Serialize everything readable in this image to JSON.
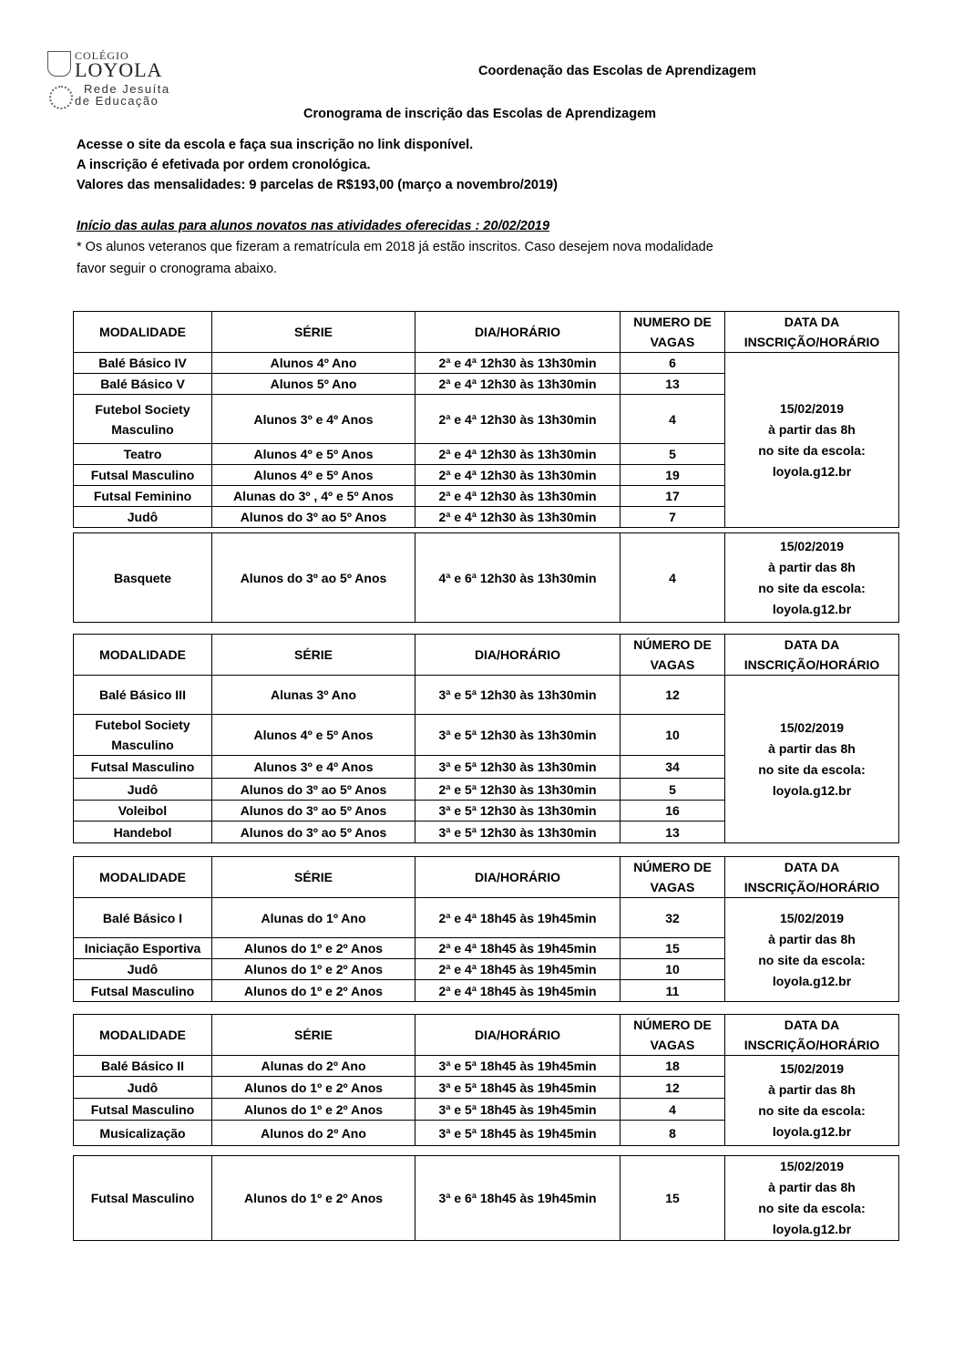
{
  "logo": {
    "line1": "COLÉGIO",
    "line2": "LOYOLA",
    "line3": "Rede Jesuíta",
    "line4": "de Educação"
  },
  "header": {
    "coordination": "Coordenação das Escolas de Aprendizagem",
    "title": "Cronograma de inscrição das Escolas de Aprendizagem",
    "line1": "Acesse o site da escola e faça sua inscrição no link disponível.",
    "line2": "A inscrição é efetivada por ordem cronológica.",
    "line3": "Valores das mensalidades: 9 parcelas de R$193,00 (março a novembro/2019)",
    "start": "Início das aulas para alunos novatos nas atividades oferecidas : 20/02/2019",
    "note1": "* Os alunos veteranos que fizeram a rematrícula em 2018 já estão inscritos. Caso desejem nova modalidade",
    "note2": "favor seguir o cronograma abaixo."
  },
  "registration": [
    "15/02/2019",
    "à partir das  8h",
    "no site da escola:",
    "loyola.g12.br"
  ],
  "tables": [
    {
      "header": [
        "MODALIDADE",
        "SÉRIE",
        "DIA/HORÁRIO",
        "NUMERO DE VAGAS",
        "DATA DA INSCRIÇÃO/HORÁRIO"
      ],
      "rows": [
        [
          "Balé Básico IV",
          "Alunos  4º Ano",
          "2ª e 4ª 12h30 às 13h30min",
          "6"
        ],
        [
          "Balé Básico  V",
          "Alunos  5º Ano",
          "2ª e 4ª 12h30 às 13h30min",
          "13"
        ],
        [
          "Futebol Society Masculino",
          "Alunos 3º e 4º Anos",
          "2ª e 4ª 12h30 às 13h30min",
          "4"
        ],
        [
          "Teatro",
          "Alunos 4º e 5º Anos",
          "2ª e 4ª 12h30 às 13h30min",
          "5"
        ],
        [
          "Futsal Masculino",
          "Alunos 4º e 5º Anos",
          "2ª e 4ª 12h30 às 13h30min",
          "19"
        ],
        [
          "Futsal Feminino",
          "Alunas do  3º , 4º e 5º Anos",
          "2ª e 4ª 12h30 às 13h30min",
          "17"
        ],
        [
          "Judô",
          "Alunos do 3º ao 5º Anos",
          "2ª e 4ª 12h30 às 13h30min",
          "7"
        ]
      ]
    },
    {
      "header": null,
      "rows": [
        [
          "Basquete",
          "Alunos do 3º ao 5º Anos",
          "4ª e 6ª 12h30 às 13h30min",
          "4"
        ]
      ]
    },
    {
      "header": [
        "MODALIDADE",
        "SÉRIE",
        "DIA/HORÁRIO",
        "NÚMERO DE VAGAS",
        "DATA DA INSCRIÇÃO/HORÁRIO"
      ],
      "rows": [
        [
          "Balé Básico III",
          "Alunas 3º Ano",
          "3ª e 5ª 12h30 às 13h30min",
          "12"
        ],
        [
          "Futebol Society Masculino",
          "Alunos 4º e 5º Anos",
          "3ª e 5ª 12h30 às 13h30min",
          "10"
        ],
        [
          "Futsal Masculino",
          "Alunos 3º e 4º Anos",
          "3ª e 5ª 12h30 às 13h30min",
          "34"
        ],
        [
          "Judô",
          "Alunos do 3º ao 5º Anos",
          "2ª e 5ª 12h30 às 13h30min",
          "5"
        ],
        [
          "Voleibol",
          "Alunos do 3º ao 5º Anos",
          "3ª e 5ª 12h30 às 13h30min",
          "16"
        ],
        [
          "Handebol",
          "Alunos do 3º ao 5º Anos",
          "3ª e 5ª 12h30 às 13h30min",
          "13"
        ]
      ]
    },
    {
      "header": [
        "MODALIDADE",
        "SÉRIE",
        "DIA/HORÁRIO",
        "NÚMERO DE VAGAS",
        "DATA DA INSCRIÇÃO/HORÁRIO"
      ],
      "rows": [
        [
          "Balé Básico I",
          "Alunas do 1º Ano",
          "2ª e 4ª 18h45 às 19h45min",
          "32"
        ],
        [
          "Iniciação Esportiva",
          "Alunos do 1º e 2º Anos",
          "2ª e 4ª 18h45 às 19h45min",
          "15"
        ],
        [
          "Judô",
          "Alunos do 1º e 2º Anos",
          "2ª e 4ª 18h45 às 19h45min",
          "10"
        ],
        [
          "Futsal Masculino",
          "Alunos do 1º e 2º Anos",
          "2ª e 4ª 18h45 às 19h45min",
          "11"
        ]
      ]
    },
    {
      "header": [
        "MODALIDADE",
        "SÉRIE",
        "DIA/HORÁRIO",
        "NÚMERO DE VAGAS",
        "DATA DA INSCRIÇÃO/HORÁRIO"
      ],
      "rows": [
        [
          "Balé Básico II",
          "Alunas do 2º Ano",
          "3ª e 5ª 18h45 às 19h45min",
          "18"
        ],
        [
          "Judô",
          "Alunos do 1º e 2º Anos",
          "3ª e 5ª 18h45 às 19h45min",
          "12"
        ],
        [
          "Futsal Masculino",
          "Alunos do 1º e 2º Anos",
          "3ª e 5ª 18h45 às 19h45min",
          "4"
        ],
        [
          "Musicalização",
          "Alunos do  2º Ano",
          "3ª e 5ª 18h45 às 19h45min",
          "8"
        ]
      ]
    },
    {
      "header": null,
      "rows": [
        [
          "Futsal Masculino",
          "Alunos do 1º e 2º Anos",
          "3ª e 6ª 18h45 às 19h45min",
          "15"
        ]
      ]
    }
  ]
}
